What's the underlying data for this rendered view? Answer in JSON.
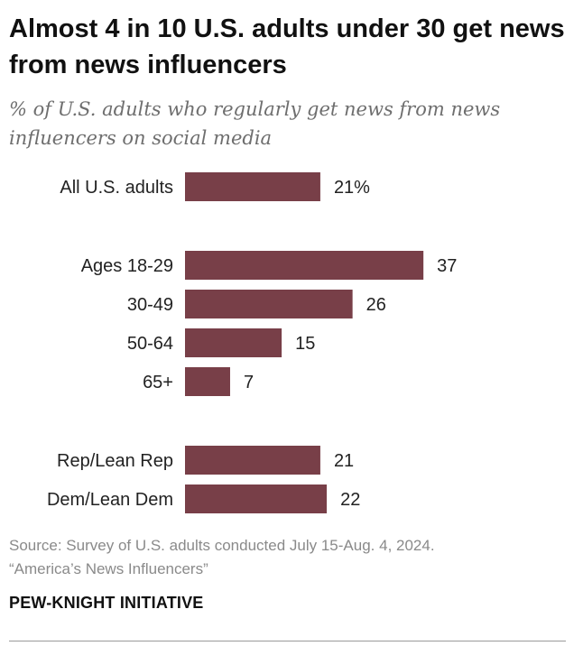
{
  "title": "Almost 4 in 10 U.S. adults under 30 get news from news influencers",
  "subtitle": "% of U.S. adults who regularly get news from news influencers on social media",
  "source": "Source: Survey of U.S. adults conducted July 15-Aug. 4, 2024.",
  "report": "“America’s News Influencers”",
  "brand": "PEW-KNIGHT INITIATIVE",
  "colors": {
    "bar": "#783f48"
  },
  "chart_data": {
    "type": "bar",
    "orientation": "horizontal",
    "categories": [
      "All U.S. adults",
      "Ages 18-29",
      "30-49",
      "50-64",
      "65+",
      "Rep/Lean Rep",
      "Dem/Lean Dem"
    ],
    "values": [
      21,
      37,
      26,
      15,
      7,
      21,
      22
    ],
    "value_labels": [
      "21%",
      "37",
      "26",
      "15",
      "7",
      "21",
      "22"
    ],
    "groups": [
      [
        "All U.S. adults"
      ],
      [
        "Ages 18-29",
        "30-49",
        "50-64",
        "65+"
      ],
      [
        "Rep/Lean Rep",
        "Dem/Lean Dem"
      ]
    ],
    "xlim": [
      0,
      37
    ],
    "grid": false,
    "legend": "none"
  }
}
